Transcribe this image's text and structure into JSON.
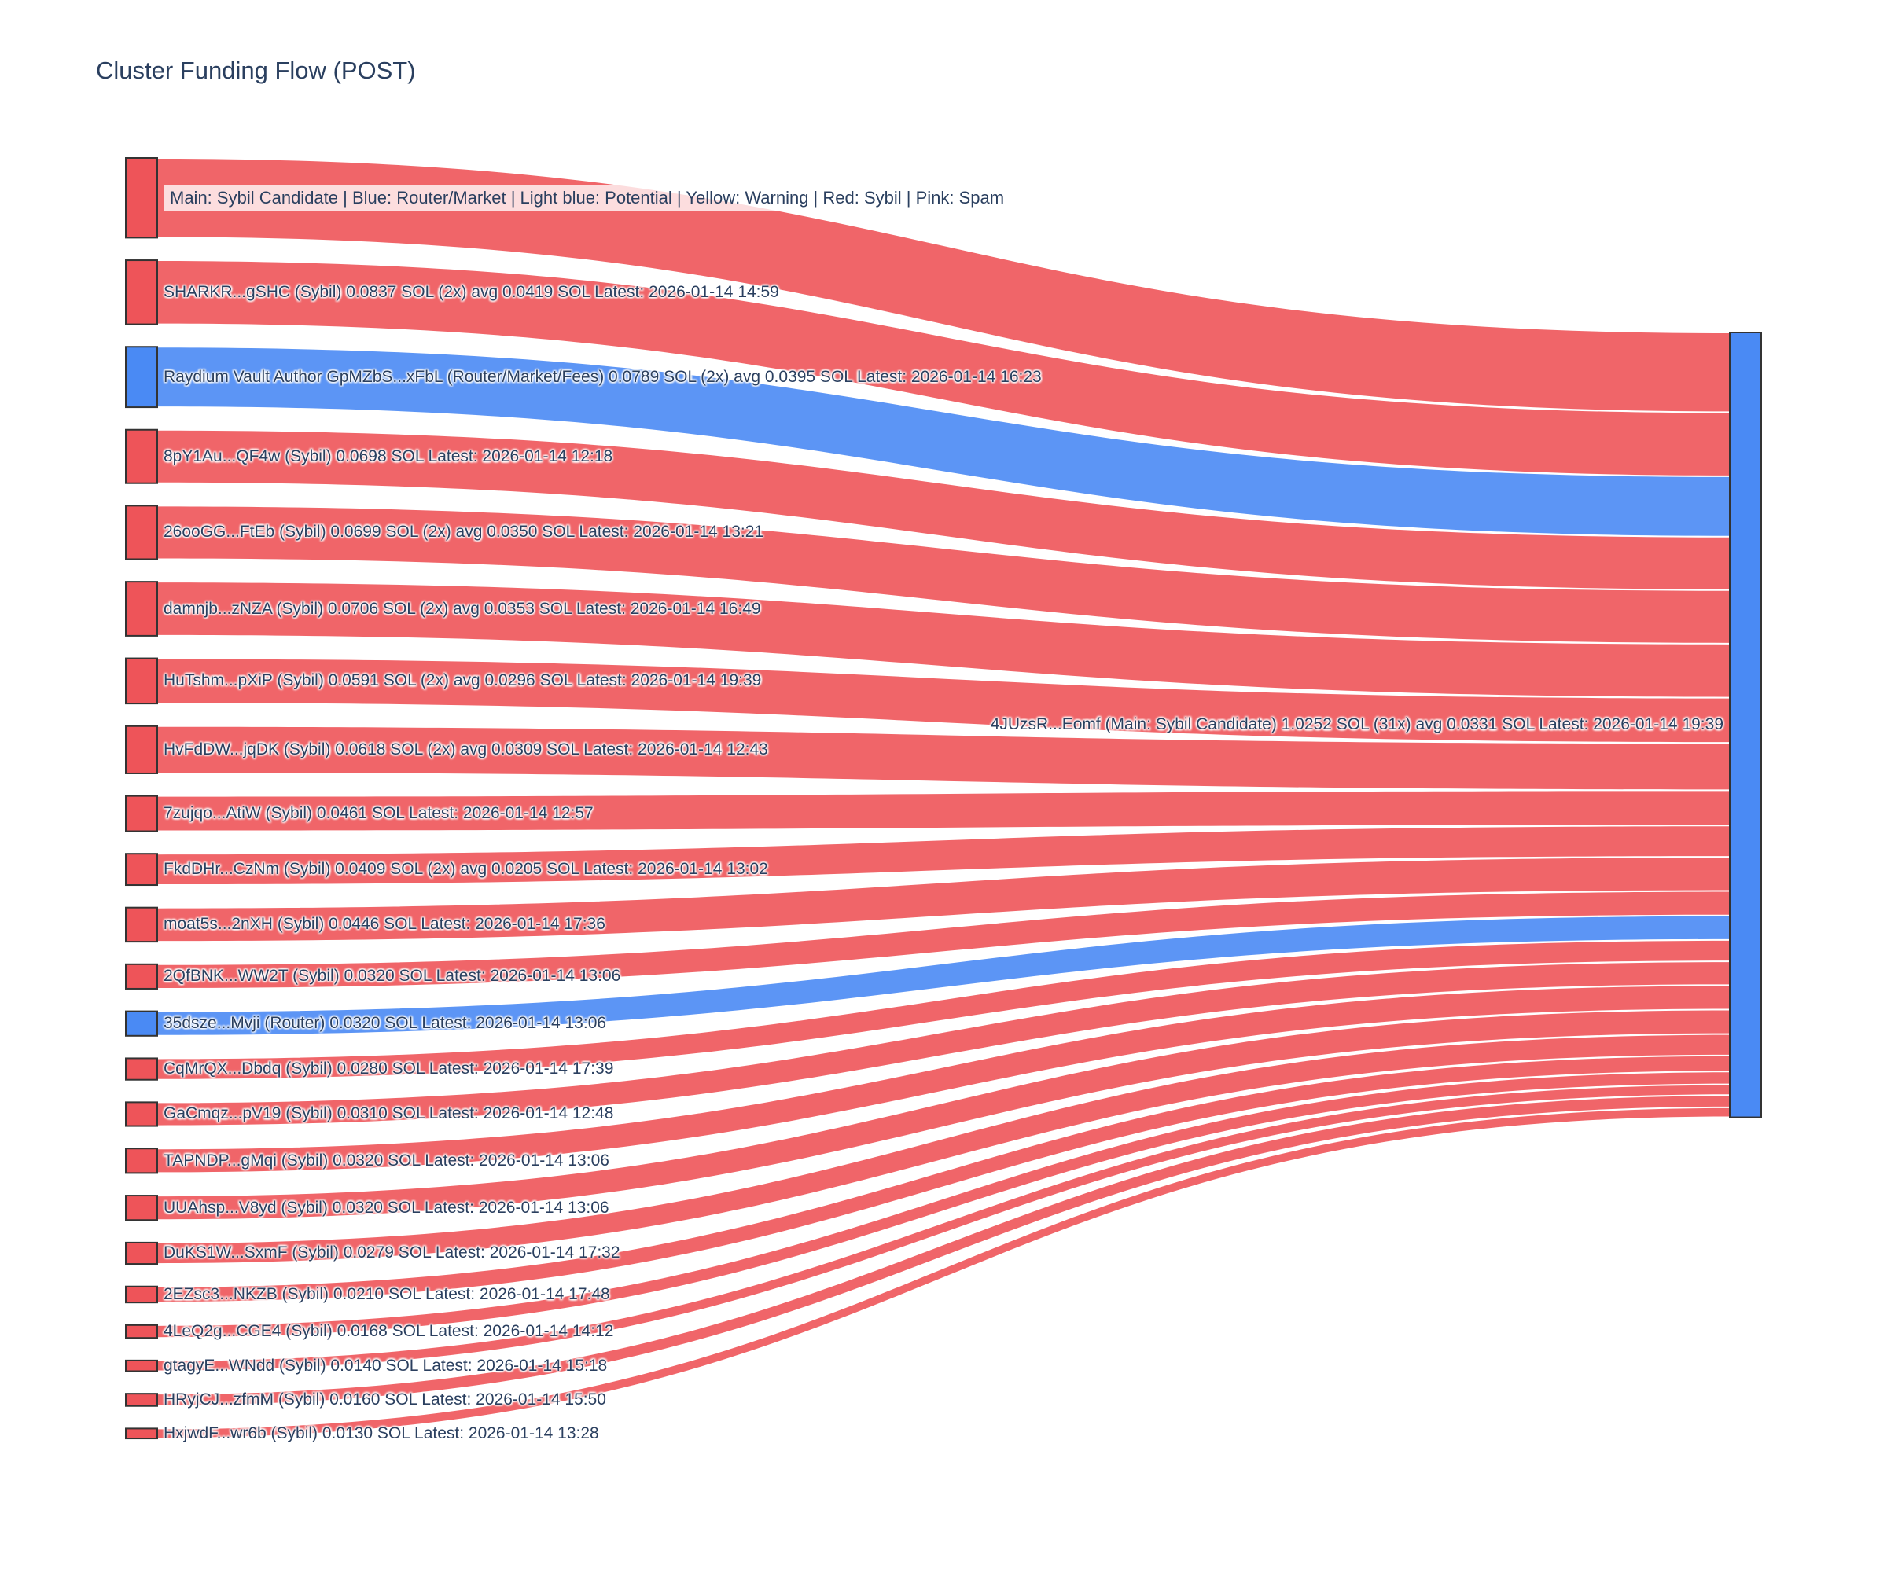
{
  "colors": {
    "sybil_red": "#EE5459",
    "router_blue": "#4A8AF4",
    "node_border": "#333333",
    "text": "#2a3f5f",
    "background": "#ffffff"
  },
  "chart_data": {
    "type": "sankey",
    "title": "Cluster Funding Flow (POST)",
    "unit": "SOL",
    "orientation": "left-to-right",
    "target": {
      "label": "4JUzsR...Eomf (Main: Sybil Candidate) 1.0252 SOL (31x) avg 0.0331 SOL Latest: 2026-01-14 19:39",
      "total_sol": 1.0252,
      "color": "router_blue"
    },
    "sources": [
      {
        "label": "Main: Sybil Candidate  |  Blue: Router/Market | Light blue: Potential | Yellow: Warning | Red: Sybil | Pink: Spam",
        "sol": 0.1041,
        "color": "sybil_red",
        "is_legend_annotation": true
      },
      {
        "label": "SHARKR...gSHC (Sybil) 0.0837 SOL (2x) avg 0.0419 SOL Latest: 2026-01-14 14:59",
        "sol": 0.0837,
        "color": "sybil_red"
      },
      {
        "label": "Raydium Vault Author GpMZbS...xFbL (Router/Market/Fees) 0.0789 SOL (2x) avg 0.0395 SOL Latest: 2026-01-14 16:23",
        "sol": 0.0789,
        "color": "router_blue"
      },
      {
        "label": "8pY1Au...QF4w (Sybil) 0.0698 SOL Latest: 2026-01-14 12:18",
        "sol": 0.0698,
        "color": "sybil_red"
      },
      {
        "label": "26ooGG...FtEb (Sybil) 0.0699 SOL (2x) avg 0.0350 SOL Latest: 2026-01-14 13:21",
        "sol": 0.0699,
        "color": "sybil_red"
      },
      {
        "label": "damnjb...zNZA (Sybil) 0.0706 SOL (2x) avg 0.0353 SOL Latest: 2026-01-14 16:49",
        "sol": 0.0706,
        "color": "sybil_red"
      },
      {
        "label": "HuTshm...pXiP (Sybil) 0.0591 SOL (2x) avg 0.0296 SOL Latest: 2026-01-14 19:39",
        "sol": 0.0591,
        "color": "sybil_red"
      },
      {
        "label": "HvFdDW...jqDK (Sybil) 0.0618 SOL (2x) avg 0.0309 SOL Latest: 2026-01-14 12:43",
        "sol": 0.0618,
        "color": "sybil_red"
      },
      {
        "label": "7zujqo...AtiW (Sybil) 0.0461 SOL Latest: 2026-01-14 12:57",
        "sol": 0.0461,
        "color": "sybil_red"
      },
      {
        "label": "FkdDHr...CzNm (Sybil) 0.0409 SOL (2x) avg 0.0205 SOL Latest: 2026-01-14 13:02",
        "sol": 0.0409,
        "color": "sybil_red"
      },
      {
        "label": "moat5s...2nXH (Sybil) 0.0446 SOL Latest: 2026-01-14 17:36",
        "sol": 0.0446,
        "color": "sybil_red"
      },
      {
        "label": "2QfBNK...WW2T (Sybil) 0.0320 SOL Latest: 2026-01-14 13:06",
        "sol": 0.032,
        "color": "sybil_red"
      },
      {
        "label": "35dsze...Mvji (Router) 0.0320 SOL Latest: 2026-01-14 13:06",
        "sol": 0.032,
        "color": "router_blue"
      },
      {
        "label": "CqMrQX...Dbdq (Sybil) 0.0280 SOL Latest: 2026-01-14 17:39",
        "sol": 0.028,
        "color": "sybil_red"
      },
      {
        "label": "GaCmqz...pV19 (Sybil) 0.0310 SOL Latest: 2026-01-14 12:48",
        "sol": 0.031,
        "color": "sybil_red"
      },
      {
        "label": "TAPNDP...gMqi (Sybil) 0.0320 SOL Latest: 2026-01-14 13:06",
        "sol": 0.032,
        "color": "sybil_red"
      },
      {
        "label": "UUAhsp...V8yd (Sybil) 0.0320 SOL Latest: 2026-01-14 13:06",
        "sol": 0.032,
        "color": "sybil_red"
      },
      {
        "label": "DuKS1W...SxmF (Sybil) 0.0279 SOL Latest: 2026-01-14 17:32",
        "sol": 0.0279,
        "color": "sybil_red"
      },
      {
        "label": "2EZsc3...NKZB (Sybil) 0.0210 SOL Latest: 2026-01-14 17:48",
        "sol": 0.021,
        "color": "sybil_red"
      },
      {
        "label": "4LeQ2g...CGE4 (Sybil) 0.0168 SOL Latest: 2026-01-14 14:12",
        "sol": 0.0168,
        "color": "sybil_red"
      },
      {
        "label": "gtagyE...WNdd (Sybil) 0.0140 SOL Latest: 2026-01-14 15:18",
        "sol": 0.014,
        "color": "sybil_red"
      },
      {
        "label": "HRyjCJ...zfmM (Sybil) 0.0160 SOL Latest: 2026-01-14 15:50",
        "sol": 0.016,
        "color": "sybil_red"
      },
      {
        "label": "HxjwdF...wr6b (Sybil) 0.0130 SOL Latest: 2026-01-14 13:28",
        "sol": 0.013,
        "color": "sybil_red"
      }
    ]
  }
}
